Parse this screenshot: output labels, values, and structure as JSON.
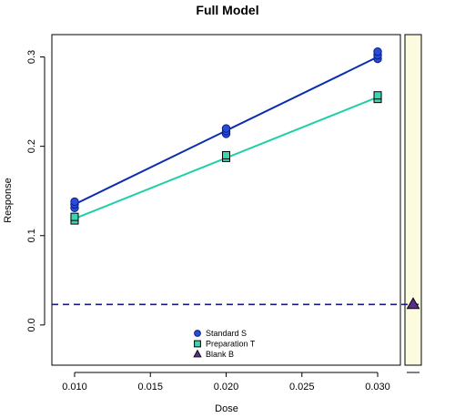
{
  "chart_data": {
    "type": "scatter",
    "title": "Full Model",
    "xlabel": "Dose",
    "ylabel": "Response",
    "xlim": [
      0.0085,
      0.0315
    ],
    "ylim": [
      -0.045,
      0.325
    ],
    "x_ticks": [
      "0.010",
      "0.015",
      "0.020",
      "0.025",
      "0.030"
    ],
    "y_ticks": [
      "0.0",
      "0.1",
      "0.2",
      "0.3"
    ],
    "series": [
      {
        "name": "Standard S",
        "marker": "circle",
        "fill": "#2a4bd7",
        "line_color": "#0a2db0",
        "points": [
          {
            "x": 0.01,
            "y": 0.131
          },
          {
            "x": 0.01,
            "y": 0.135
          },
          {
            "x": 0.01,
            "y": 0.138
          },
          {
            "x": 0.02,
            "y": 0.214
          },
          {
            "x": 0.02,
            "y": 0.217
          },
          {
            "x": 0.02,
            "y": 0.22
          },
          {
            "x": 0.03,
            "y": 0.298
          },
          {
            "x": 0.03,
            "y": 0.302
          },
          {
            "x": 0.03,
            "y": 0.306
          }
        ],
        "fit": [
          {
            "x": 0.01,
            "y": 0.135
          },
          {
            "x": 0.03,
            "y": 0.3
          }
        ]
      },
      {
        "name": "Preparation T",
        "marker": "square",
        "fill": "#3ad6b2",
        "line_color": "#1ccfa8",
        "points": [
          {
            "x": 0.01,
            "y": 0.117
          },
          {
            "x": 0.01,
            "y": 0.121
          },
          {
            "x": 0.02,
            "y": 0.187
          },
          {
            "x": 0.02,
            "y": 0.19
          },
          {
            "x": 0.03,
            "y": 0.253
          },
          {
            "x": 0.03,
            "y": 0.257
          }
        ],
        "fit": [
          {
            "x": 0.01,
            "y": 0.119
          },
          {
            "x": 0.03,
            "y": 0.255
          }
        ]
      },
      {
        "name": "Blank B",
        "marker": "triangle",
        "fill": "#5b2d8a",
        "line_color": "#1a1a8c",
        "level": 0.023
      }
    ],
    "legend_position": "bottom-center",
    "side_panel_color": "#fdfbdf",
    "grid": false
  }
}
